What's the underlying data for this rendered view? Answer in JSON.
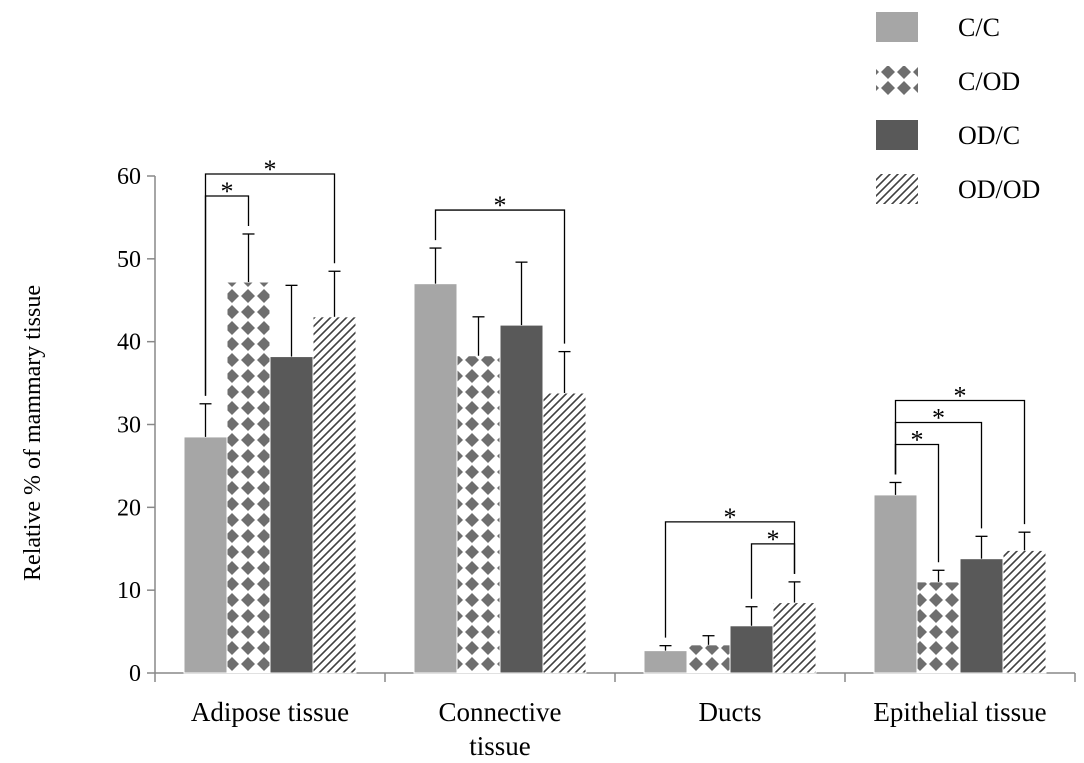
{
  "chart_data": {
    "type": "bar",
    "ylabel": "Relative  % of mammary  tissue",
    "ylim": [
      0,
      60
    ],
    "yticks": [
      "0",
      "10",
      "20",
      "30",
      "40",
      "50",
      "60"
    ],
    "categories": [
      "Adipose tissue",
      "Connective tissue",
      "Ducts",
      "Epithelial tissue"
    ],
    "category_lines": [
      [
        "Adipose tissue"
      ],
      [
        "Connective",
        "tissue"
      ],
      [
        "Ducts"
      ],
      [
        "Epithelial tissue"
      ]
    ],
    "legend_position": "top-right",
    "grid": false,
    "series": [
      {
        "name": "C/C",
        "pattern": "solid-light",
        "color": "#a6a6a6",
        "values": [
          28.5,
          47.0,
          2.7,
          21.5
        ],
        "errors": [
          4.0,
          4.3,
          0.6,
          1.5
        ]
      },
      {
        "name": "C/OD",
        "pattern": "diamond-check",
        "color": "#6e6e6e",
        "values": [
          47.2,
          38.3,
          3.4,
          11.0
        ],
        "errors": [
          5.8,
          4.7,
          1.1,
          1.4
        ]
      },
      {
        "name": "OD/C",
        "pattern": "solid-dark",
        "color": "#595959",
        "values": [
          38.2,
          42.0,
          5.7,
          13.8
        ],
        "errors": [
          8.6,
          7.6,
          2.3,
          2.7
        ]
      },
      {
        "name": "OD/OD",
        "pattern": "diagonal-hatch",
        "color": "#404040",
        "values": [
          43.0,
          33.8,
          8.5,
          14.8
        ],
        "errors": [
          5.5,
          5.0,
          2.5,
          2.2
        ]
      }
    ],
    "significance": [
      {
        "category": 0,
        "from": 0,
        "to": 1,
        "label": "*"
      },
      {
        "category": 0,
        "from": 0,
        "to": 3,
        "label": "*"
      },
      {
        "category": 1,
        "from": 0,
        "to": 3,
        "label": "*"
      },
      {
        "category": 2,
        "from": 0,
        "to": 3,
        "label": "*"
      },
      {
        "category": 2,
        "from": 2,
        "to": 3,
        "label": "*"
      },
      {
        "category": 3,
        "from": 0,
        "to": 1,
        "label": "*"
      },
      {
        "category": 3,
        "from": 0,
        "to": 2,
        "label": "*"
      },
      {
        "category": 3,
        "from": 0,
        "to": 3,
        "label": "*"
      }
    ]
  }
}
